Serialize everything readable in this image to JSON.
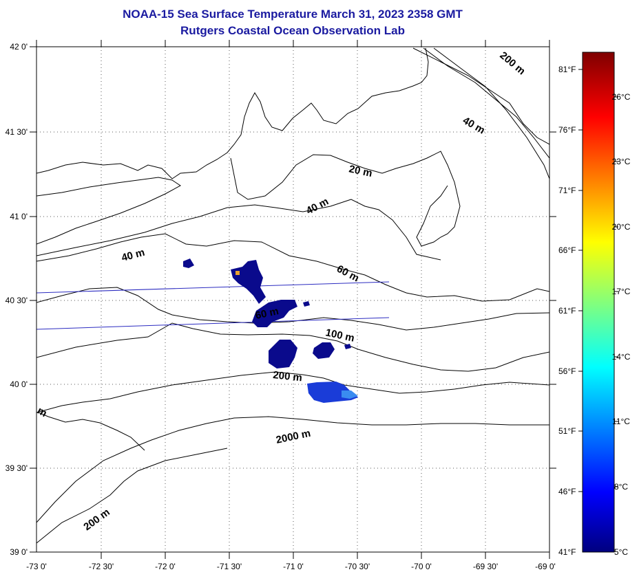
{
  "header": {
    "title": "NOAA-15 Sea Surface Temperature March 31, 2023 2358 GMT",
    "subtitle": "Rutgers Coastal Ocean Observation Lab"
  },
  "map": {
    "lat_labels": [
      "42 0'",
      "41 30'",
      "41 0'",
      "40 30'",
      "40 0'",
      "39 30'",
      "39 0'"
    ],
    "lon_labels": [
      "-73 0'",
      "-72 30'",
      "-72 0'",
      "-71 30'",
      "-71 0'",
      "-70 30'",
      "-70 0'",
      "-69 30'",
      "-69 0'"
    ],
    "lat_range": [
      39.0,
      42.0
    ],
    "lon_range": [
      -73.0,
      -69.0
    ],
    "isobath_labels": [
      "200 m",
      "40 m",
      "20 m",
      "40 m",
      "40 m",
      "60 m",
      "60 m",
      "100 m",
      "200 m",
      "2000 m",
      "200 m",
      "m"
    ]
  },
  "colorbar": {
    "fahrenheit_labels": [
      "81°F",
      "76°F",
      "71°F",
      "66°F",
      "61°F",
      "56°F",
      "51°F",
      "46°F",
      "41°F"
    ],
    "celsius_labels": [
      "26°C",
      "23°C",
      "20°C",
      "17°C",
      "14°C",
      "11°C",
      "8°C",
      "5°C"
    ],
    "range_celsius": [
      5,
      27.5
    ],
    "colors": [
      "#00007f",
      "#0000ff",
      "#007fff",
      "#00ffff",
      "#7fff7f",
      "#ffff00",
      "#ff7f00",
      "#ff0000",
      "#7f0000"
    ]
  }
}
